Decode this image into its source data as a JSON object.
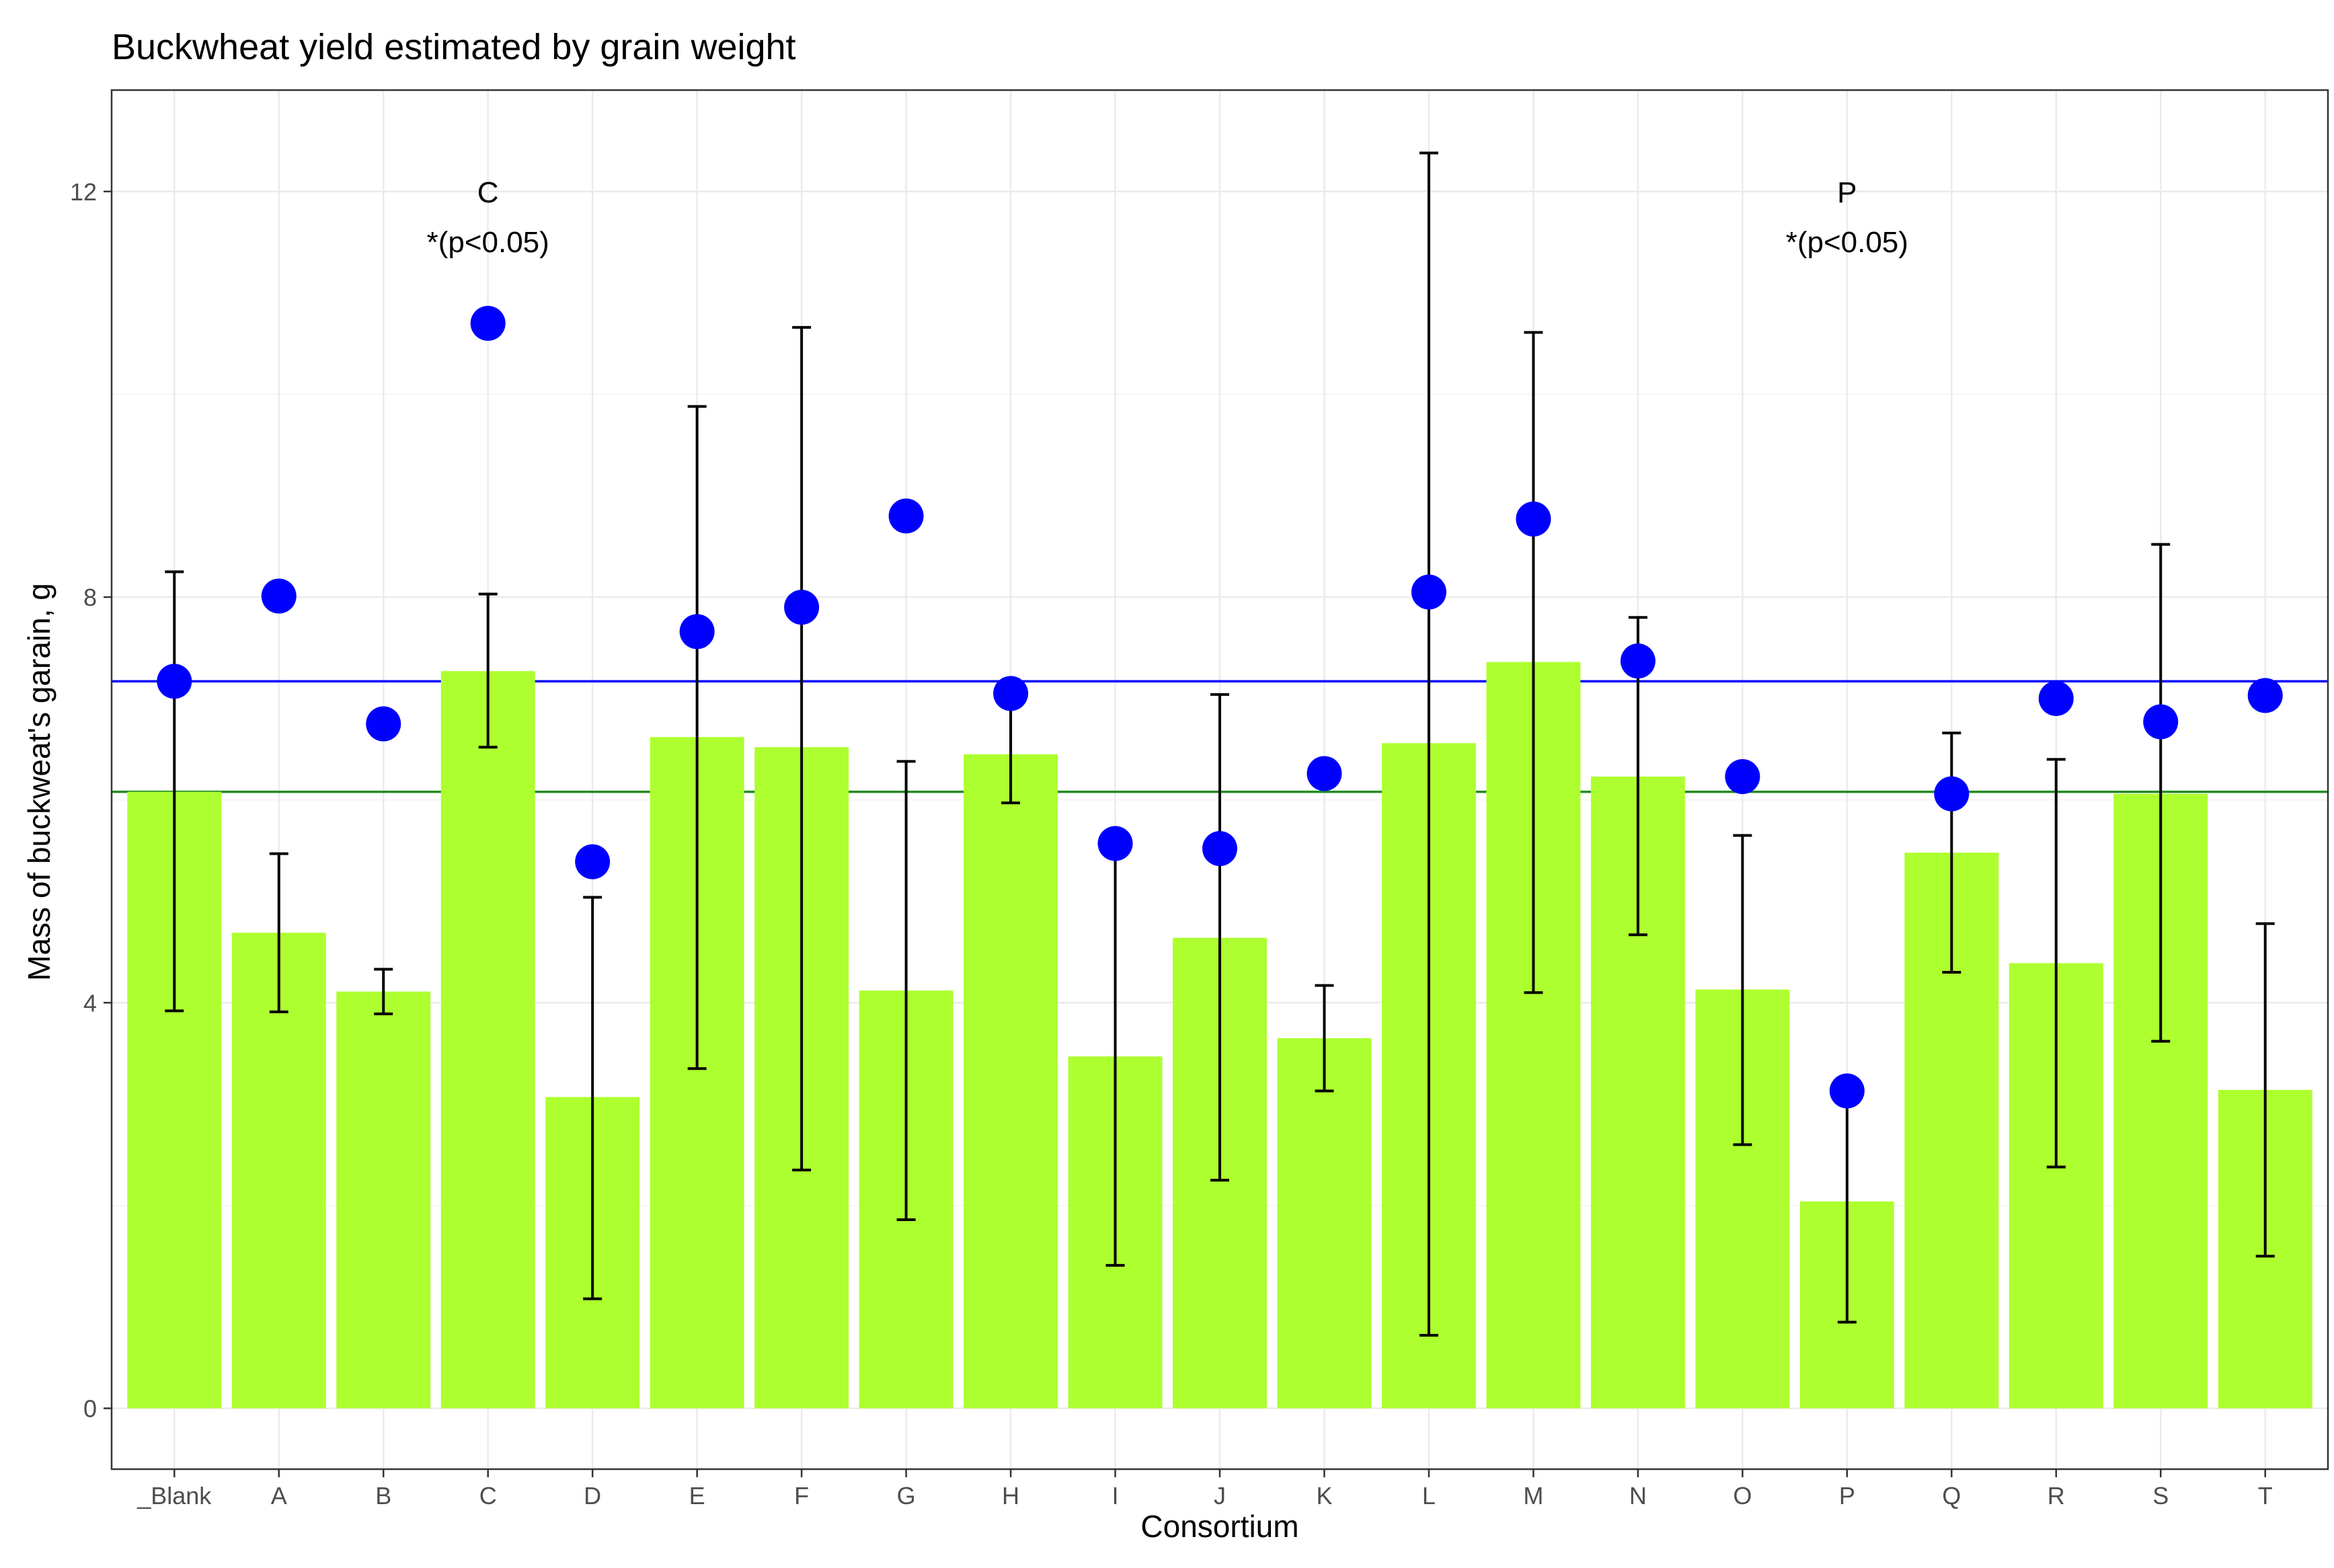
{
  "chart_data": {
    "type": "bar",
    "title": "Buckwheat yield estimated by grain weight",
    "xlabel": "Consortium",
    "ylabel": "Mass of buckweat's garain, g",
    "categories": [
      "_Blank",
      "A",
      "B",
      "C",
      "D",
      "E",
      "F",
      "G",
      "H",
      "I",
      "J",
      "K",
      "L",
      "M",
      "N",
      "O",
      "P",
      "Q",
      "R",
      "S",
      "T"
    ],
    "yticks": [
      "0",
      "4",
      "8",
      "12"
    ],
    "ylim": [
      -0.6,
      13.0
    ],
    "grid": true,
    "bars": {
      "color": "#adff2f",
      "values": [
        6.08,
        4.69,
        4.11,
        7.27,
        3.07,
        6.62,
        6.52,
        4.12,
        6.45,
        3.47,
        4.64,
        3.65,
        6.56,
        7.36,
        6.23,
        4.13,
        2.04,
        5.48,
        4.39,
        6.06,
        3.14
      ]
    },
    "error_bars": {
      "color": "#000000",
      "low": [
        3.92,
        3.91,
        3.89,
        6.52,
        1.08,
        3.35,
        2.35,
        1.86,
        5.97,
        1.41,
        2.25,
        3.13,
        0.72,
        4.1,
        4.67,
        2.6,
        0.85,
        4.3,
        2.38,
        3.62,
        1.5
      ],
      "high": [
        8.25,
        5.47,
        4.33,
        8.03,
        5.04,
        9.88,
        10.66,
        6.38,
        6.96,
        5.53,
        7.04,
        4.17,
        12.38,
        10.61,
        7.8,
        5.65,
        3.23,
        6.66,
        6.4,
        8.52,
        4.78
      ]
    },
    "points": {
      "color": "#0000ff",
      "values": [
        7.17,
        8.01,
        6.75,
        10.7,
        5.39,
        7.66,
        7.9,
        8.8,
        7.05,
        5.57,
        5.52,
        6.26,
        8.05,
        8.77,
        7.37,
        6.23,
        3.13,
        6.06,
        7.0,
        6.77,
        7.03
      ]
    },
    "hlines": [
      {
        "y": 7.17,
        "color": "#0000ff"
      },
      {
        "y": 6.08,
        "color": "#228b22"
      }
    ],
    "annotations": [
      {
        "category": "C",
        "label": "C",
        "sublabel": "*(p<0.05)",
        "y": 12.0
      },
      {
        "category": "P",
        "label": "P",
        "sublabel": "*(p<0.05)",
        "y": 12.0
      }
    ]
  }
}
